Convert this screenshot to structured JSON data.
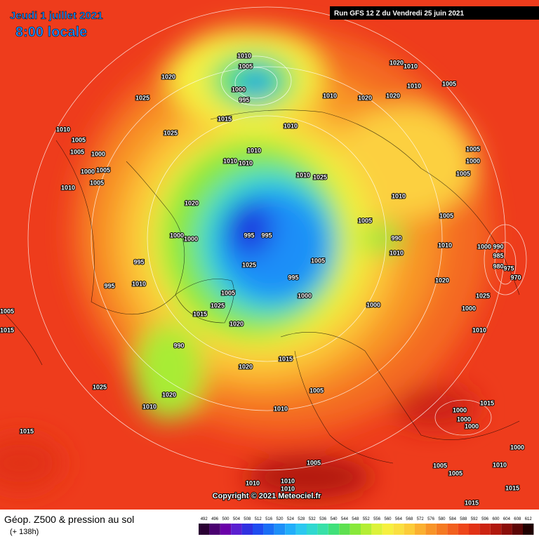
{
  "header": {
    "date": "Jeudi 1 juillet 2021",
    "time": "8:00 locale",
    "run": "Run GFS 12 Z du Vendredi 25 juin 2021"
  },
  "copyright": "Copyright © 2021 Meteociel.fr",
  "footer": {
    "title": "Géop. Z500 & pression au sol",
    "lead": "(+ 138h)"
  },
  "scale": {
    "ticks": [
      492,
      496,
      500,
      504,
      508,
      512,
      516,
      520,
      524,
      528,
      532,
      536,
      540,
      544,
      548,
      552,
      556,
      560,
      564,
      568,
      572,
      576,
      580,
      584,
      588,
      592,
      596,
      600,
      604,
      608,
      612
    ],
    "colors": [
      "#2a0033",
      "#4a0070",
      "#6a00a8",
      "#5a1fd0",
      "#3030e0",
      "#1f4cf0",
      "#1a6ef5",
      "#1e8ff8",
      "#22aefa",
      "#2cc8f0",
      "#30d8d0",
      "#38e0a8",
      "#40e07a",
      "#5ee050",
      "#88e83a",
      "#b4ee34",
      "#dcf23a",
      "#f6f040",
      "#fae040",
      "#fccc38",
      "#fbb030",
      "#f89428",
      "#f57a22",
      "#f2601e",
      "#ee461a",
      "#e23216",
      "#cc2412",
      "#b0180e",
      "#8a0e0a",
      "#5c0606",
      "#200000"
    ]
  },
  "pressure_labels": [
    "1010",
    "1005",
    "1000",
    "995",
    "1020",
    "1025",
    "1015",
    "1025",
    "1010",
    "1005",
    "1005",
    "1000",
    "1000",
    "1005",
    "1005",
    "1010",
    "1010",
    "1020",
    "1020",
    "1020",
    "1010",
    "1010",
    "1010",
    "1010",
    "1005",
    "1010",
    "1010",
    "1010",
    "1025",
    "1020",
    "1005",
    "1010",
    "1005",
    "1005",
    "1000",
    "1005",
    "995",
    "995",
    "1000",
    "1000",
    "990",
    "1010",
    "1010",
    "1000",
    "990",
    "985",
    "980",
    "975",
    "970",
    "995",
    "1025",
    "1005",
    "995",
    "1000",
    "995",
    "1010",
    "1020",
    "1005",
    "1025",
    "1000",
    "1000",
    "1005",
    "1015",
    "1015",
    "1025",
    "1020",
    "1010",
    "990",
    "1015",
    "1020",
    "1025",
    "1020",
    "1005",
    "1010",
    "1010",
    "1015",
    "1015",
    "1000",
    "1000",
    "1000",
    "1000",
    "1005",
    "1005",
    "1010",
    "1005",
    "1010",
    "1010",
    "1010",
    "1015",
    "1015"
  ]
}
